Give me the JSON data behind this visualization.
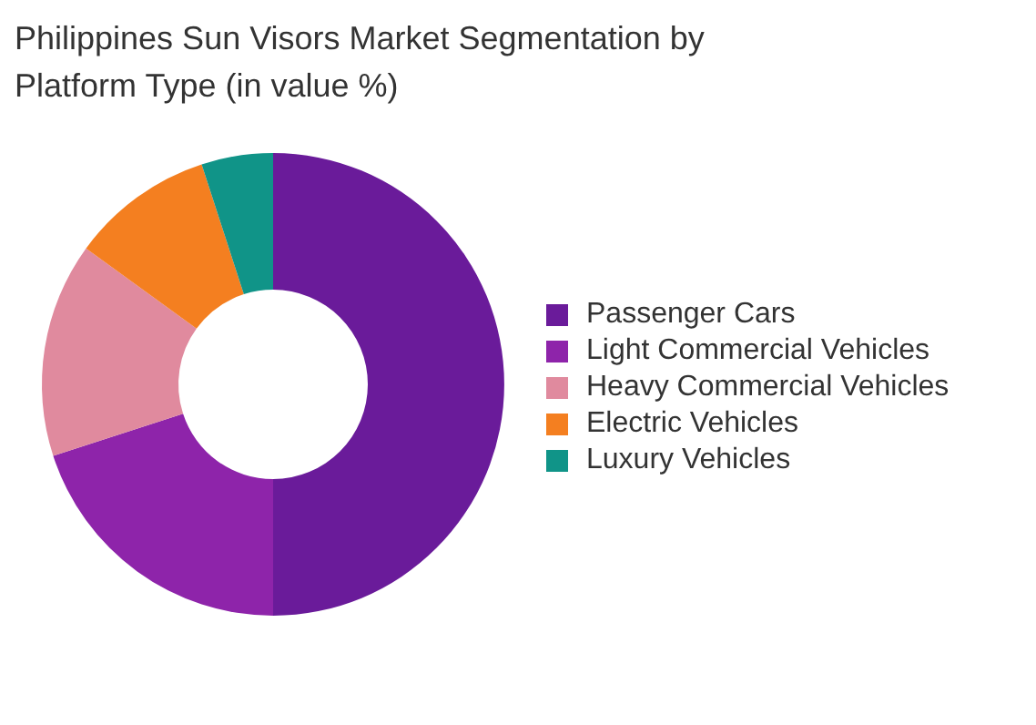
{
  "chart_data": {
    "type": "donut",
    "title": "Philippines Sun Visors Market Segmentation by Platform Type (in value %)",
    "categories": [
      "Passenger Cars",
      "Light Commercial Vehicles",
      "Heavy Commercial Vehicles",
      "Electric Vehicles",
      "Luxury Vehicles"
    ],
    "values": [
      50,
      20,
      15,
      10,
      5
    ],
    "colors": [
      "#6a1b9a",
      "#8e24aa",
      "#e08a9e",
      "#f47f20",
      "#109488"
    ],
    "legend": "right"
  }
}
